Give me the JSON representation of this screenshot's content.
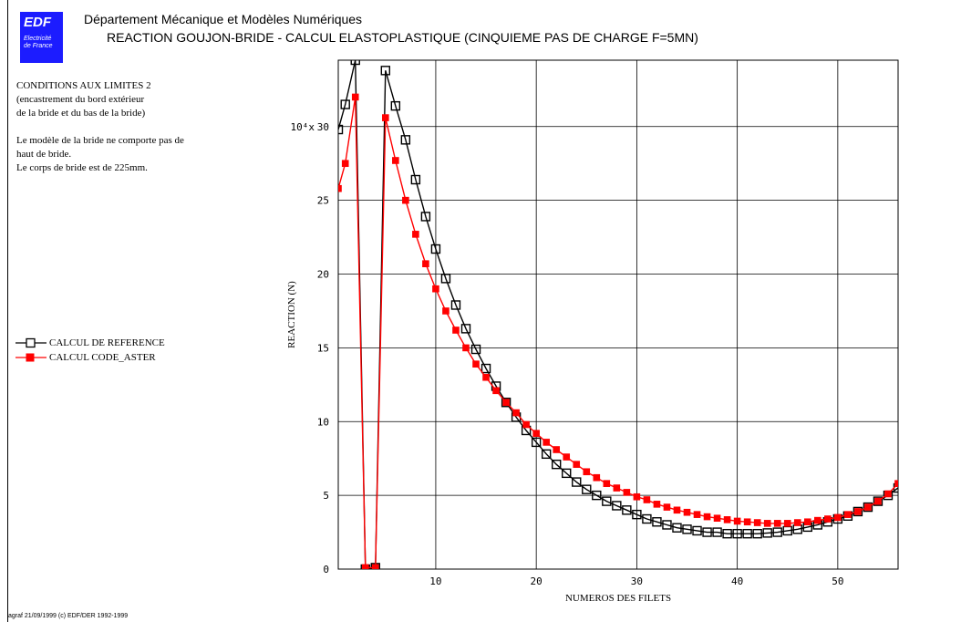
{
  "header": {
    "logo_main": "EDF",
    "logo_sub_1": "Electricité",
    "logo_sub_2": "de France",
    "department": "Département Mécanique et Modèles Numériques",
    "title": "REACTION GOUJON-BRIDE - CALCUL ELASTOPLASTIQUE  (CINQUIEME PAS DE CHARGE F=5MN)"
  },
  "notes": {
    "block1": [
      "CONDITIONS AUX LIMITES 2",
      "(encastrement du bord extérieur",
      "de la bride et du bas de la bride)"
    ],
    "block2": [
      "Le modèle de la bride ne comporte pas de",
      "haut de bride.",
      "Le corps de bride est de 225mm."
    ]
  },
  "legend": {
    "items": [
      {
        "label": "CALCUL DE REFERENCE",
        "color": "#000000",
        "marker": "open-square"
      },
      {
        "label": "CALCUL CODE_ASTER",
        "color": "#ff0000",
        "marker": "filled-square"
      }
    ]
  },
  "footer": {
    "text": "agraf 21/09/1999 (c) EDF/DER 1992-1999"
  },
  "chart_data": {
    "type": "line",
    "xlabel": "NUMEROS DES FILETS",
    "ylabel": "REACTION (N)",
    "y_multiplier_label": "10⁴x",
    "xlim": [
      0.3,
      56
    ],
    "ylim": [
      0,
      34.5
    ],
    "x_ticks": [
      10,
      20,
      30,
      40,
      50
    ],
    "y_ticks": [
      0,
      5,
      10,
      15,
      20,
      25,
      30
    ],
    "grid": true,
    "series": [
      {
        "name": "CALCUL DE REFERENCE",
        "color": "#000000",
        "marker": "open-square",
        "x": [
          0.3,
          1,
          2,
          3,
          4,
          5,
          6,
          7,
          8,
          9,
          10,
          11,
          12,
          13,
          14,
          15,
          16,
          17,
          18,
          19,
          20,
          21,
          22,
          23,
          24,
          25,
          26,
          27,
          28,
          29,
          30,
          31,
          32,
          33,
          34,
          35,
          36,
          37,
          38,
          39,
          40,
          41,
          42,
          43,
          44,
          45,
          46,
          47,
          48,
          49,
          50,
          51,
          52,
          53,
          54,
          55,
          56
        ],
        "y": [
          29.8,
          31.5,
          34.5,
          0.0,
          0.1,
          33.8,
          31.4,
          29.1,
          26.4,
          23.9,
          21.7,
          19.7,
          17.9,
          16.3,
          14.9,
          13.6,
          12.4,
          11.3,
          10.3,
          9.4,
          8.6,
          7.8,
          7.1,
          6.5,
          5.9,
          5.4,
          5.0,
          4.6,
          4.3,
          4.0,
          3.7,
          3.4,
          3.2,
          3.0,
          2.8,
          2.7,
          2.6,
          2.5,
          2.5,
          2.4,
          2.4,
          2.4,
          2.4,
          2.45,
          2.5,
          2.6,
          2.7,
          2.85,
          3.0,
          3.2,
          3.4,
          3.6,
          3.9,
          4.2,
          4.6,
          5.0,
          5.5
        ]
      },
      {
        "name": "CALCUL CODE_ASTER",
        "color": "#ff0000",
        "marker": "filled-square",
        "x": [
          0.3,
          1,
          2,
          3,
          4,
          5,
          6,
          7,
          8,
          9,
          10,
          11,
          12,
          13,
          14,
          15,
          16,
          17,
          18,
          19,
          20,
          21,
          22,
          23,
          24,
          25,
          26,
          27,
          28,
          29,
          30,
          31,
          32,
          33,
          34,
          35,
          36,
          37,
          38,
          39,
          40,
          41,
          42,
          43,
          44,
          45,
          46,
          47,
          48,
          49,
          50,
          51,
          52,
          53,
          54,
          55,
          56
        ],
        "y": [
          25.8,
          27.5,
          32.0,
          0.1,
          0.1,
          30.6,
          27.7,
          25.0,
          22.7,
          20.7,
          19.0,
          17.5,
          16.2,
          15.0,
          13.9,
          13.0,
          12.1,
          11.3,
          10.6,
          9.8,
          9.2,
          8.6,
          8.1,
          7.6,
          7.1,
          6.6,
          6.2,
          5.8,
          5.5,
          5.2,
          4.9,
          4.7,
          4.4,
          4.2,
          4.0,
          3.85,
          3.7,
          3.55,
          3.45,
          3.35,
          3.25,
          3.2,
          3.15,
          3.1,
          3.1,
          3.1,
          3.15,
          3.2,
          3.3,
          3.4,
          3.5,
          3.7,
          3.9,
          4.2,
          4.6,
          5.1,
          5.8
        ]
      }
    ]
  }
}
